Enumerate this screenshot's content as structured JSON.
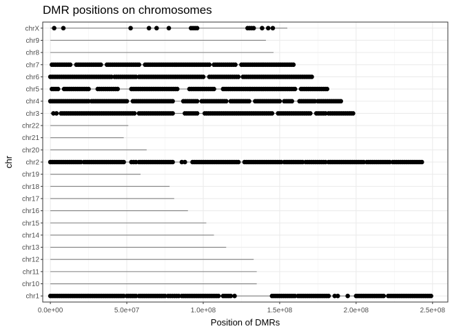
{
  "chart_data": {
    "type": "scatter",
    "title": "DMR positions on chromosomes",
    "xlabel": "Position of DMRs",
    "ylabel": "chr",
    "xlim": [
      -5000000,
      260000000
    ],
    "x_ticks": [
      0,
      50000000,
      100000000,
      150000000,
      200000000,
      250000000
    ],
    "x_tick_labels": [
      "0.0e+00",
      "5.0e+07",
      "1.0e+08",
      "1.5e+08",
      "2.0e+08",
      "2.5e+08"
    ],
    "grid": true,
    "chromosomes": [
      {
        "label": "chr1",
        "length": 249000000,
        "dmrs": [
          [
            0,
            48000000
          ],
          [
            50000000,
            56000000
          ],
          [
            58000000,
            75000000
          ],
          [
            77000000,
            84000000
          ],
          [
            86000000,
            110000000
          ],
          [
            113000000,
            118000000
          ],
          [
            120000000,
            121000000
          ],
          [
            145000000,
            160000000
          ],
          [
            162000000,
            182000000
          ],
          [
            186000000,
            188000000
          ],
          [
            194000000,
            195000000
          ],
          [
            200000000,
            218000000
          ],
          [
            221000000,
            249000000
          ]
        ]
      },
      {
        "label": "chr10",
        "length": 135000000,
        "dmrs": []
      },
      {
        "label": "chr11",
        "length": 135000000,
        "dmrs": []
      },
      {
        "label": "chr12",
        "length": 133000000,
        "dmrs": []
      },
      {
        "label": "chr13",
        "length": 115000000,
        "dmrs": []
      },
      {
        "label": "chr14",
        "length": 107000000,
        "dmrs": []
      },
      {
        "label": "chr15",
        "length": 102000000,
        "dmrs": []
      },
      {
        "label": "chr16",
        "length": 90000000,
        "dmrs": []
      },
      {
        "label": "chr17",
        "length": 81000000,
        "dmrs": []
      },
      {
        "label": "chr18",
        "length": 78000000,
        "dmrs": []
      },
      {
        "label": "chr19",
        "length": 59000000,
        "dmrs": []
      },
      {
        "label": "chr2",
        "length": 243000000,
        "dmrs": [
          [
            0,
            20000000
          ],
          [
            22000000,
            48000000
          ],
          [
            53000000,
            56000000
          ],
          [
            58000000,
            80000000
          ],
          [
            86000000,
            88000000
          ],
          [
            93000000,
            123000000
          ],
          [
            127000000,
            151000000
          ],
          [
            153000000,
            165000000
          ],
          [
            167000000,
            180000000
          ],
          [
            182000000,
            205000000
          ],
          [
            207000000,
            222000000
          ],
          [
            224000000,
            243000000
          ]
        ]
      },
      {
        "label": "chr20",
        "length": 63000000,
        "dmrs": []
      },
      {
        "label": "chr21",
        "length": 48000000,
        "dmrs": []
      },
      {
        "label": "chr22",
        "length": 51000000,
        "dmrs": []
      },
      {
        "label": "chr3",
        "length": 198000000,
        "dmrs": [
          [
            2000000,
            4000000
          ],
          [
            7000000,
            55000000
          ],
          [
            58000000,
            80000000
          ],
          [
            88000000,
            96000000
          ],
          [
            101000000,
            145000000
          ],
          [
            149000000,
            170000000
          ],
          [
            174000000,
            180000000
          ],
          [
            182000000,
            198000000
          ]
        ]
      },
      {
        "label": "chr4",
        "length": 190000000,
        "dmrs": [
          [
            0,
            25000000
          ],
          [
            27000000,
            50000000
          ],
          [
            54000000,
            80000000
          ],
          [
            87000000,
            96000000
          ],
          [
            99000000,
            115000000
          ],
          [
            118000000,
            130000000
          ],
          [
            134000000,
            150000000
          ],
          [
            153000000,
            158000000
          ],
          [
            163000000,
            173000000
          ],
          [
            175000000,
            190000000
          ]
        ]
      },
      {
        "label": "chr5",
        "length": 181000000,
        "dmrs": [
          [
            1000000,
            5000000
          ],
          [
            9000000,
            25000000
          ],
          [
            31000000,
            44000000
          ],
          [
            53000000,
            83000000
          ],
          [
            91000000,
            107000000
          ],
          [
            113000000,
            130000000
          ],
          [
            131000000,
            160000000
          ],
          [
            164000000,
            181000000
          ]
        ]
      },
      {
        "label": "chr6",
        "length": 171000000,
        "dmrs": [
          [
            0,
            40000000
          ],
          [
            42000000,
            56000000
          ],
          [
            58000000,
            100000000
          ],
          [
            104000000,
            123000000
          ],
          [
            126000000,
            171000000
          ]
        ]
      },
      {
        "label": "chr7",
        "length": 159000000,
        "dmrs": [
          [
            1000000,
            13000000
          ],
          [
            17000000,
            33000000
          ],
          [
            37000000,
            58000000
          ],
          [
            62000000,
            104000000
          ],
          [
            107000000,
            121000000
          ],
          [
            125000000,
            159000000
          ]
        ]
      },
      {
        "label": "chr8",
        "length": 146000000,
        "dmrs": []
      },
      {
        "label": "chr9",
        "length": 141000000,
        "dmrs": []
      },
      {
        "label": "chrX",
        "length": 155000000,
        "dmrs": [
          [
            2000000,
            3000000
          ],
          [
            8000000,
            9000000
          ],
          [
            52000000,
            53000000
          ],
          [
            64000000,
            65000000
          ],
          [
            69000000,
            70000000
          ],
          [
            77000000,
            78000000
          ],
          [
            92000000,
            96000000
          ],
          [
            129000000,
            133000000
          ],
          [
            138000000,
            139000000
          ],
          [
            142000000,
            143000000
          ],
          [
            145000000,
            146000000
          ]
        ]
      }
    ]
  }
}
